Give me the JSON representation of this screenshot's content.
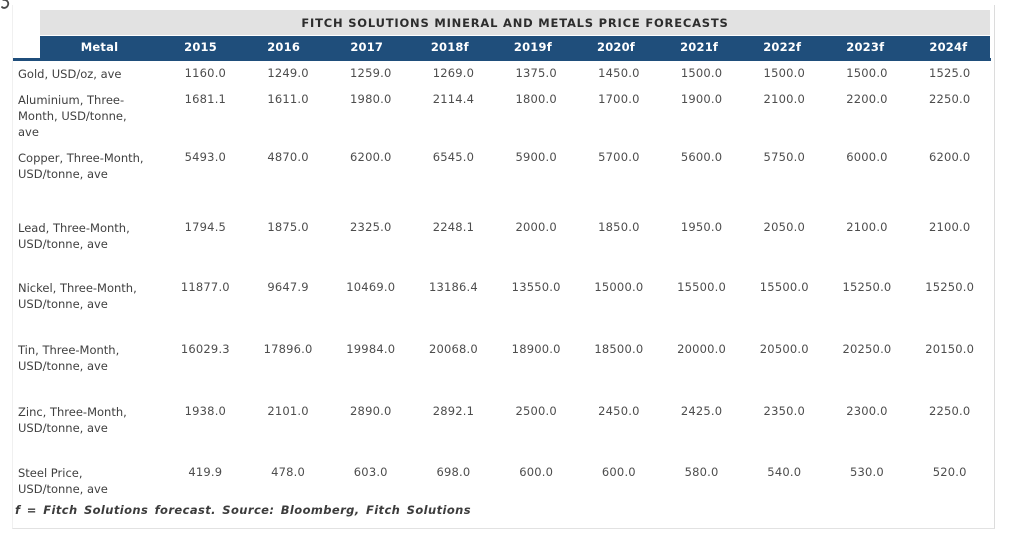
{
  "title": "FITCH SOLUTIONS MINERAL AND METALS PRICE FORECASTS",
  "footnote": "f = Fitch Solutions forecast. Source: Bloomberg, Fitch Solutions",
  "colors": {
    "header_bg": "#1f4e7b",
    "title_bg": "#e2e2e2",
    "body_text": "#4d4d4d",
    "header_text": "#ffffff"
  },
  "chart_data": {
    "type": "table",
    "title": "FITCH SOLUTIONS MINERAL AND METALS PRICE FORECASTS",
    "columns": [
      "Metal",
      "2015",
      "2016",
      "2017",
      "2018f",
      "2019f",
      "2020f",
      "2021f",
      "2022f",
      "2023f",
      "2024f"
    ],
    "rows": [
      {
        "metal": "Gold, USD/oz, ave",
        "values": [
          "1160.0",
          "1249.0",
          "1259.0",
          "1269.0",
          "1375.0",
          "1450.0",
          "1500.0",
          "1500.0",
          "1500.0",
          "1525.0"
        ]
      },
      {
        "metal": "Aluminium, Three-Month, USD/tonne, ave",
        "values": [
          "1681.1",
          "1611.0",
          "1980.0",
          "2114.4",
          "1800.0",
          "1700.0",
          "1900.0",
          "2100.0",
          "2200.0",
          "2250.0"
        ]
      },
      {
        "metal": "Copper, Three-Month, USD/tonne, ave",
        "values": [
          "5493.0",
          "4870.0",
          "6200.0",
          "6545.0",
          "5900.0",
          "5700.0",
          "5600.0",
          "5750.0",
          "6000.0",
          "6200.0"
        ]
      },
      {
        "metal": "Lead, Three-Month, USD/tonne, ave",
        "values": [
          "1794.5",
          "1875.0",
          "2325.0",
          "2248.1",
          "2000.0",
          "1850.0",
          "1950.0",
          "2050.0",
          "2100.0",
          "2100.0"
        ]
      },
      {
        "metal": "Nickel, Three-Month, USD/tonne, ave",
        "values": [
          "11877.0",
          "9647.9",
          "10469.0",
          "13186.4",
          "13550.0",
          "15000.0",
          "15500.0",
          "15500.0",
          "15250.0",
          "15250.0"
        ]
      },
      {
        "metal": "Tin, Three-Month, USD/tonne, ave",
        "values": [
          "16029.3",
          "17896.0",
          "19984.0",
          "20068.0",
          "18900.0",
          "18500.0",
          "20000.0",
          "20500.0",
          "20250.0",
          "20150.0"
        ]
      },
      {
        "metal": "Zinc, Three-Month, USD/tonne, ave",
        "values": [
          "1938.0",
          "2101.0",
          "2890.0",
          "2892.1",
          "2500.0",
          "2450.0",
          "2425.0",
          "2350.0",
          "2300.0",
          "2250.0"
        ]
      },
      {
        "metal": "Steel Price, USD/tonne, ave",
        "values": [
          "419.9",
          "478.0",
          "603.0",
          "698.0",
          "600.0",
          "600.0",
          "580.0",
          "540.0",
          "530.0",
          "520.0"
        ]
      }
    ],
    "footnote": "f = Fitch Solutions forecast. Source: Bloomberg, Fitch Solutions"
  }
}
